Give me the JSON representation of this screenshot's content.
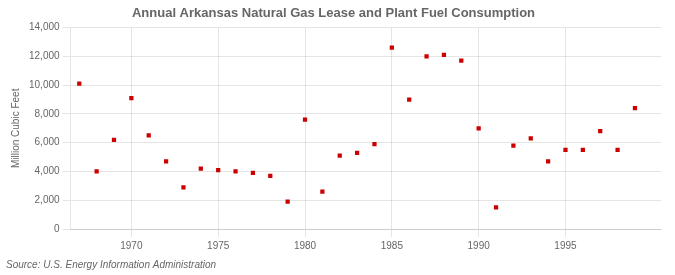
{
  "chart_data": {
    "type": "scatter",
    "title": "Annual Arkansas Natural Gas Lease and Plant Fuel Consumption",
    "ylabel": "Million Cubic Feet",
    "source": "Source: U.S. Energy Information Administration",
    "x": [
      1967,
      1968,
      1969,
      1970,
      1971,
      1972,
      1973,
      1974,
      1975,
      1976,
      1977,
      1978,
      1979,
      1980,
      1981,
      1982,
      1983,
      1984,
      1985,
      1986,
      1987,
      1988,
      1989,
      1990,
      1991,
      1992,
      1993,
      1994,
      1995,
      1996,
      1997,
      1998,
      1999
    ],
    "values": [
      10100,
      4000,
      6200,
      9100,
      6500,
      4700,
      2900,
      4200,
      4100,
      4000,
      3900,
      3700,
      1900,
      7600,
      2600,
      5100,
      5300,
      5900,
      12600,
      9000,
      12000,
      12100,
      11700,
      7000,
      1500,
      5800,
      6300,
      4700,
      5500,
      5500,
      6800,
      5500,
      8400
    ],
    "color": "#cc0000",
    "marker": "square",
    "xlim": [
      1966.5,
      2000.5
    ],
    "xticks": [
      1970,
      1975,
      1980,
      1985,
      1990,
      1995
    ],
    "ylim": [
      0,
      14000
    ],
    "yticks": [
      0,
      {
        "value": 2000,
        "label": "2,000"
      },
      {
        "value": 4000,
        "label": "4,000"
      },
      {
        "value": 6000,
        "label": "6,000"
      },
      {
        "value": 8000,
        "label": "8,000"
      },
      {
        "value": 10000,
        "label": "10,000"
      },
      {
        "value": 12000,
        "label": "12,000"
      },
      {
        "value": 14000,
        "label": "14,000"
      }
    ],
    "grid": true
  }
}
